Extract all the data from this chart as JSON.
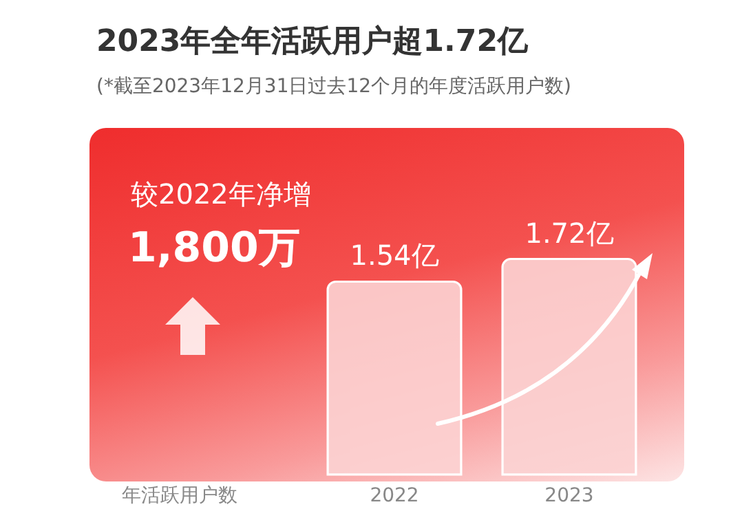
{
  "chart_data": {
    "type": "bar",
    "title": "2023年全年活跃用户超1.72亿",
    "subtitle": "(*截至2023年12月31日过去12个月的年度活跃用户数)",
    "xlabel": "年活跃用户数",
    "categories": [
      "2022",
      "2023"
    ],
    "values": [
      1.54,
      1.72
    ],
    "value_labels": [
      "1.54亿",
      "1.72亿"
    ],
    "color": "#fcd3d3",
    "annotations": [
      "较2022年净增",
      "1,800万"
    ]
  }
}
